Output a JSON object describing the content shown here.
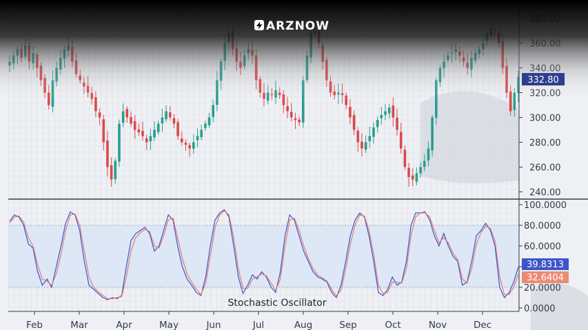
{
  "brand": {
    "name": "ARZNOW",
    "logo_icon": "lightning-bolt-icon"
  },
  "colors": {
    "up": "#2a9d8f",
    "down": "#d94a4a",
    "k_line": "#3b55c9",
    "d_line": "#e57a6a",
    "band_fill": "#dde7f6",
    "price_badge": "#2f3d8f",
    "k_badge": "#3b55c9",
    "d_badge": "#ee8a74"
  },
  "chart_data": [
    {
      "type": "candlestick",
      "title": "",
      "ylim": [
        230,
        385
      ],
      "yticks": [
        "380.00",
        "360.00",
        "340.00",
        "320.00",
        "300.00",
        "280.00",
        "260.00",
        "240.00"
      ],
      "last_price_label": "332.80",
      "grid": true,
      "ohlc_path": [
        345,
        350,
        355,
        348,
        358,
        345,
        352,
        340,
        330,
        320,
        310,
        330,
        340,
        348,
        355,
        358,
        345,
        335,
        330,
        325,
        320,
        315,
        305,
        300,
        280,
        260,
        250,
        265,
        295,
        305,
        300,
        295,
        290,
        288,
        285,
        280,
        285,
        290,
        295,
        300,
        305,
        300,
        295,
        285,
        280,
        278,
        275,
        280,
        285,
        290,
        295,
        300,
        310,
        330,
        345,
        360,
        368,
        355,
        345,
        340,
        350,
        355,
        350,
        330,
        320,
        315,
        320,
        318,
        322,
        318,
        310,
        305,
        300,
        298,
        296,
        330,
        350,
        368,
        370,
        360,
        345,
        330,
        320,
        318,
        320,
        318,
        310,
        300,
        290,
        280,
        275,
        280,
        285,
        292,
        298,
        302,
        305,
        308,
        300,
        290,
        275,
        260,
        252,
        250,
        255,
        260,
        265,
        275,
        300,
        330,
        340,
        345,
        350,
        352,
        355,
        350,
        345,
        340,
        348,
        352,
        355,
        360,
        368,
        372,
        370,
        360,
        340,
        320,
        305,
        320,
        332.8
      ]
    },
    {
      "type": "line",
      "title": "Stochastic Oscillator",
      "ylim": [
        0,
        100
      ],
      "yticks": [
        "100.0000",
        "80.0000",
        "60.0000",
        "40.0000",
        "20.0000",
        "0.0000"
      ],
      "bands": [
        20,
        80
      ],
      "x_labels": [
        "Feb",
        "Mar",
        "Apr",
        "May",
        "Jun",
        "Jul",
        "Aug",
        "Sep",
        "Oct",
        "Nov",
        "Dec"
      ],
      "series": [
        {
          "name": "",
          "values": [
            84,
            90,
            88,
            80,
            62,
            58,
            35,
            22,
            28,
            20,
            40,
            60,
            82,
            93,
            90,
            75,
            45,
            22,
            18,
            14,
            10,
            8,
            10,
            9,
            12,
            40,
            65,
            72,
            75,
            78,
            72,
            55,
            60,
            75,
            90,
            85,
            60,
            40,
            28,
            22,
            15,
            12,
            30,
            60,
            85,
            92,
            95,
            88,
            60,
            30,
            14,
            22,
            32,
            28,
            35,
            30,
            20,
            15,
            35,
            70,
            90,
            85,
            70,
            55,
            45,
            35,
            30,
            28,
            25,
            15,
            10,
            22,
            45,
            70,
            85,
            92,
            88,
            70,
            45,
            15,
            12,
            18,
            30,
            22,
            25,
            45,
            80,
            92,
            92,
            93,
            85,
            70,
            60,
            72,
            60,
            50,
            45,
            22,
            25,
            45,
            70,
            75,
            82,
            75,
            60,
            20,
            10,
            15,
            25,
            39.8313
          ],
          "last_label": "39.8313"
        },
        {
          "name": "",
          "values": [
            82,
            88,
            89,
            83,
            68,
            60,
            42,
            28,
            26,
            22,
            33,
            52,
            75,
            90,
            91,
            80,
            55,
            30,
            20,
            16,
            12,
            9,
            9,
            10,
            11,
            30,
            55,
            68,
            73,
            76,
            74,
            60,
            58,
            70,
            85,
            87,
            68,
            48,
            33,
            25,
            18,
            13,
            24,
            50,
            78,
            90,
            94,
            90,
            68,
            38,
            19,
            19,
            28,
            30,
            33,
            31,
            24,
            17,
            28,
            60,
            85,
            87,
            75,
            60,
            48,
            38,
            32,
            29,
            26,
            18,
            12,
            17,
            38,
            62,
            80,
            90,
            89,
            75,
            52,
            22,
            14,
            15,
            25,
            25,
            24,
            38,
            70,
            88,
            92,
            92,
            88,
            75,
            63,
            68,
            63,
            53,
            47,
            28,
            24,
            38,
            62,
            73,
            79,
            77,
            65,
            30,
            13,
            13,
            20,
            32.6404
          ],
          "last_label": "32.6404"
        }
      ]
    }
  ]
}
